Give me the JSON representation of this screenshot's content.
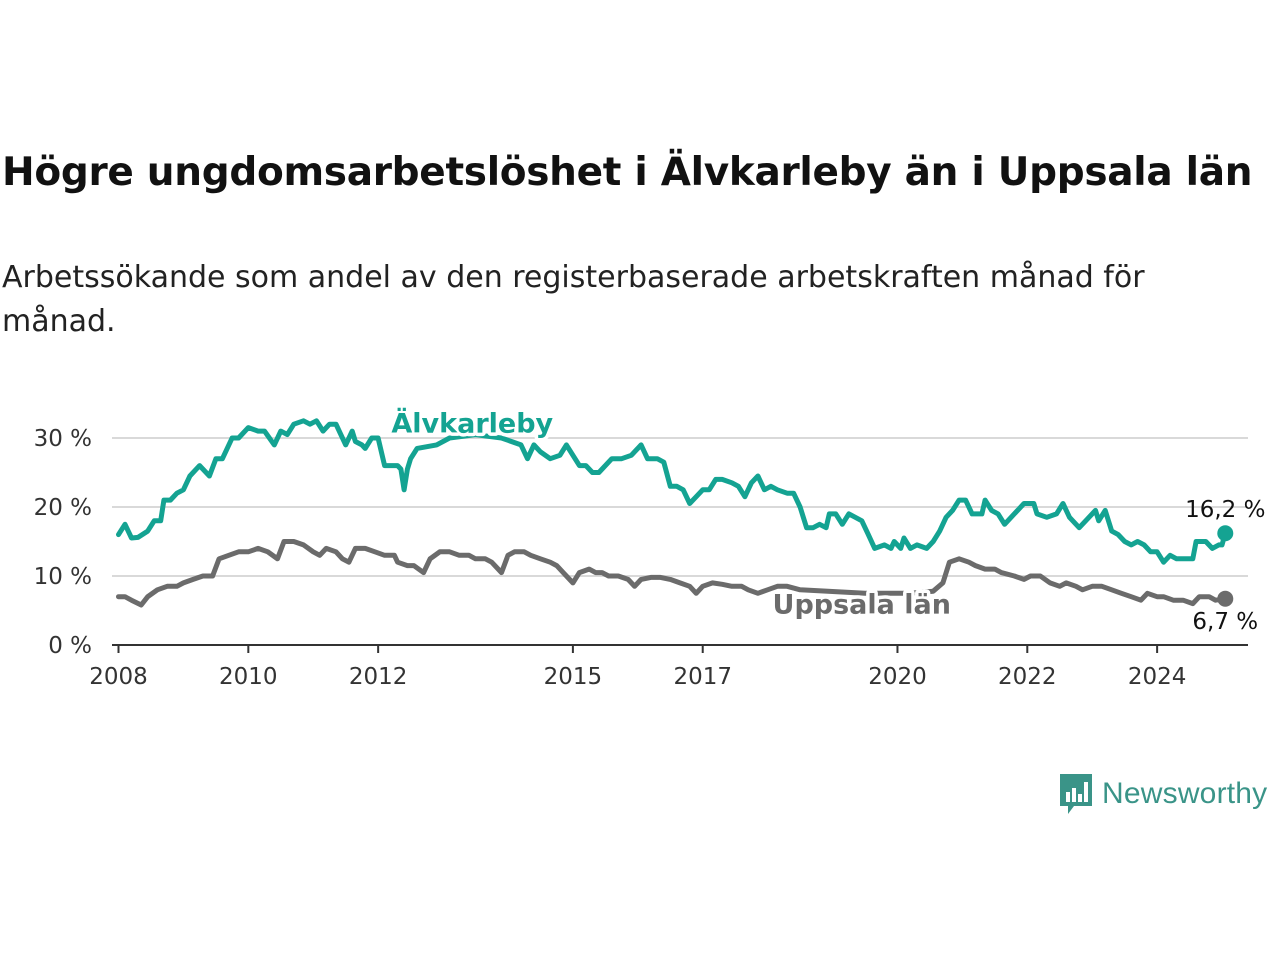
{
  "title": "Högre ungdomsarbetslöshet i Älvkarleby än i Uppsala län",
  "subtitle": "Arbetssökande som andel av den registerbaserade arbetskraften månad för månad.",
  "brand": {
    "name": "Newsworthy",
    "color": "#3a9488",
    "icon": "bar-chart-speech-bubble-icon"
  },
  "chart_data": {
    "type": "line",
    "x_unit": "year",
    "xlim": [
      2007.9,
      2025.4
    ],
    "ylim": [
      0,
      30
    ],
    "y_ticks": [
      0,
      10,
      20,
      30
    ],
    "y_tick_labels": [
      "0 %",
      "10 %",
      "20 %",
      "30 %"
    ],
    "x_ticks": [
      2008,
      2010,
      2012,
      2015,
      2017,
      2020,
      2022,
      2024
    ],
    "x_tick_labels": [
      "2008",
      "2010",
      "2012",
      "2015",
      "2017",
      "2020",
      "2022",
      "2024"
    ],
    "grid": "horizontal",
    "legend": "inline labels",
    "series": [
      {
        "name": "Älvkarleby",
        "color": "#14a392",
        "end_label": "16,2 %",
        "points": [
          [
            2008.0,
            16.0
          ],
          [
            2008.1,
            17.5
          ],
          [
            2008.2,
            15.5
          ],
          [
            2008.3,
            15.6
          ],
          [
            2008.45,
            16.5
          ],
          [
            2008.55,
            18.0
          ],
          [
            2008.65,
            18.0
          ],
          [
            2008.7,
            21.0
          ],
          [
            2008.8,
            21.0
          ],
          [
            2008.9,
            22.0
          ],
          [
            2009.0,
            22.5
          ],
          [
            2009.1,
            24.5
          ],
          [
            2009.25,
            26.0
          ],
          [
            2009.35,
            25.0
          ],
          [
            2009.4,
            24.5
          ],
          [
            2009.5,
            27.0
          ],
          [
            2009.6,
            27.0
          ],
          [
            2009.75,
            30.0
          ],
          [
            2009.85,
            30.0
          ],
          [
            2010.0,
            31.5
          ],
          [
            2010.15,
            31.0
          ],
          [
            2010.25,
            31.0
          ],
          [
            2010.4,
            29.0
          ],
          [
            2010.5,
            31.0
          ],
          [
            2010.6,
            30.5
          ],
          [
            2010.7,
            32.0
          ],
          [
            2010.85,
            32.5
          ],
          [
            2010.95,
            32.0
          ],
          [
            2011.05,
            32.5
          ],
          [
            2011.15,
            31.0
          ],
          [
            2011.25,
            32.0
          ],
          [
            2011.35,
            32.0
          ],
          [
            2011.5,
            29.0
          ],
          [
            2011.6,
            31.0
          ],
          [
            2011.65,
            29.5
          ],
          [
            2011.75,
            29.0
          ],
          [
            2011.8,
            28.5
          ],
          [
            2011.9,
            30.0
          ],
          [
            2012.0,
            30.0
          ],
          [
            2012.1,
            26.0
          ],
          [
            2012.2,
            26.0
          ],
          [
            2012.3,
            26.0
          ],
          [
            2012.35,
            25.5
          ],
          [
            2012.4,
            22.5
          ],
          [
            2012.45,
            25.5
          ],
          [
            2012.5,
            27.0
          ],
          [
            2012.6,
            28.5
          ],
          [
            2012.9,
            29.0
          ],
          [
            2013.1,
            30.0
          ],
          [
            2013.5,
            30.5
          ],
          [
            2013.9,
            30.0
          ],
          [
            2014.2,
            29.0
          ],
          [
            2014.3,
            27.0
          ],
          [
            2014.4,
            29.0
          ],
          [
            2014.5,
            28.0
          ],
          [
            2014.65,
            27.0
          ],
          [
            2014.8,
            27.5
          ],
          [
            2014.9,
            29.0
          ],
          [
            2015.1,
            26.0
          ],
          [
            2015.2,
            26.0
          ],
          [
            2015.3,
            25.0
          ],
          [
            2015.4,
            25.0
          ],
          [
            2015.6,
            27.0
          ],
          [
            2015.75,
            27.0
          ],
          [
            2015.9,
            27.5
          ],
          [
            2016.05,
            29.0
          ],
          [
            2016.15,
            27.0
          ],
          [
            2016.3,
            27.0
          ],
          [
            2016.4,
            26.5
          ],
          [
            2016.5,
            23.0
          ],
          [
            2016.6,
            23.0
          ],
          [
            2016.7,
            22.5
          ],
          [
            2016.8,
            20.5
          ],
          [
            2016.9,
            21.5
          ],
          [
            2017.0,
            22.5
          ],
          [
            2017.1,
            22.5
          ],
          [
            2017.2,
            24.0
          ],
          [
            2017.3,
            24.0
          ],
          [
            2017.45,
            23.5
          ],
          [
            2017.55,
            23.0
          ],
          [
            2017.65,
            21.5
          ],
          [
            2017.75,
            23.5
          ],
          [
            2017.85,
            24.5
          ],
          [
            2017.95,
            22.5
          ],
          [
            2018.05,
            23.0
          ],
          [
            2018.15,
            22.5
          ],
          [
            2018.3,
            22.0
          ],
          [
            2018.4,
            22.0
          ],
          [
            2018.5,
            20.0
          ],
          [
            2018.6,
            17.0
          ],
          [
            2018.7,
            17.0
          ],
          [
            2018.8,
            17.5
          ],
          [
            2018.9,
            17.0
          ],
          [
            2018.95,
            19.0
          ],
          [
            2019.05,
            19.0
          ],
          [
            2019.15,
            17.5
          ],
          [
            2019.25,
            19.0
          ],
          [
            2019.35,
            18.5
          ],
          [
            2019.45,
            18.0
          ],
          [
            2019.55,
            16.0
          ],
          [
            2019.65,
            14.0
          ],
          [
            2019.8,
            14.5
          ],
          [
            2019.9,
            14.0
          ],
          [
            2019.95,
            15.0
          ],
          [
            2020.05,
            14.0
          ],
          [
            2020.1,
            15.5
          ],
          [
            2020.2,
            14.0
          ],
          [
            2020.3,
            14.5
          ],
          [
            2020.45,
            14.0
          ],
          [
            2020.55,
            15.0
          ],
          [
            2020.65,
            16.5
          ],
          [
            2020.75,
            18.5
          ],
          [
            2020.85,
            19.5
          ],
          [
            2020.95,
            21.0
          ],
          [
            2021.05,
            21.0
          ],
          [
            2021.15,
            19.0
          ],
          [
            2021.3,
            19.0
          ],
          [
            2021.35,
            21.0
          ],
          [
            2021.45,
            19.5
          ],
          [
            2021.55,
            19.0
          ],
          [
            2021.65,
            17.5
          ],
          [
            2021.75,
            18.5
          ],
          [
            2021.85,
            19.5
          ],
          [
            2021.95,
            20.5
          ],
          [
            2022.1,
            20.5
          ],
          [
            2022.15,
            19.0
          ],
          [
            2022.3,
            18.5
          ],
          [
            2022.45,
            19.0
          ],
          [
            2022.55,
            20.5
          ],
          [
            2022.65,
            18.5
          ],
          [
            2022.8,
            17.0
          ],
          [
            2022.9,
            18.0
          ],
          [
            2023.05,
            19.5
          ],
          [
            2023.1,
            18.0
          ],
          [
            2023.2,
            19.5
          ],
          [
            2023.3,
            16.5
          ],
          [
            2023.4,
            16.0
          ],
          [
            2023.5,
            15.0
          ],
          [
            2023.6,
            14.5
          ],
          [
            2023.7,
            15.0
          ],
          [
            2023.8,
            14.5
          ],
          [
            2023.9,
            13.5
          ],
          [
            2024.0,
            13.5
          ],
          [
            2024.1,
            12.0
          ],
          [
            2024.2,
            13.0
          ],
          [
            2024.3,
            12.5
          ],
          [
            2024.45,
            12.5
          ],
          [
            2024.55,
            12.5
          ],
          [
            2024.6,
            15.0
          ],
          [
            2024.75,
            15.0
          ],
          [
            2024.85,
            14.0
          ],
          [
            2024.95,
            14.5
          ],
          [
            2025.0,
            14.5
          ],
          [
            2025.05,
            16.2
          ]
        ]
      },
      {
        "name": "Uppsala län",
        "color": "#6b6b6b",
        "end_label": "6,7 %",
        "points": [
          [
            2008.0,
            7.0
          ],
          [
            2008.1,
            7.0
          ],
          [
            2008.2,
            6.5
          ],
          [
            2008.35,
            5.8
          ],
          [
            2008.45,
            7.0
          ],
          [
            2008.6,
            8.0
          ],
          [
            2008.75,
            8.5
          ],
          [
            2008.9,
            8.5
          ],
          [
            2009.0,
            9.0
          ],
          [
            2009.15,
            9.5
          ],
          [
            2009.3,
            10.0
          ],
          [
            2009.45,
            10.0
          ],
          [
            2009.55,
            12.5
          ],
          [
            2009.7,
            13.0
          ],
          [
            2009.85,
            13.5
          ],
          [
            2010.0,
            13.5
          ],
          [
            2010.15,
            14.0
          ],
          [
            2010.3,
            13.5
          ],
          [
            2010.45,
            12.5
          ],
          [
            2010.55,
            15.0
          ],
          [
            2010.7,
            15.0
          ],
          [
            2010.85,
            14.5
          ],
          [
            2011.0,
            13.5
          ],
          [
            2011.1,
            13.0
          ],
          [
            2011.2,
            14.0
          ],
          [
            2011.35,
            13.5
          ],
          [
            2011.45,
            12.5
          ],
          [
            2011.55,
            12.0
          ],
          [
            2011.65,
            14.0
          ],
          [
            2011.8,
            14.0
          ],
          [
            2011.95,
            13.5
          ],
          [
            2012.1,
            13.0
          ],
          [
            2012.25,
            13.0
          ],
          [
            2012.3,
            12.0
          ],
          [
            2012.45,
            11.5
          ],
          [
            2012.55,
            11.5
          ],
          [
            2012.7,
            10.5
          ],
          [
            2012.8,
            12.5
          ],
          [
            2012.95,
            13.5
          ],
          [
            2013.1,
            13.5
          ],
          [
            2013.25,
            13.0
          ],
          [
            2013.4,
            13.0
          ],
          [
            2013.5,
            12.5
          ],
          [
            2013.65,
            12.5
          ],
          [
            2013.75,
            12.0
          ],
          [
            2013.9,
            10.5
          ],
          [
            2014.0,
            13.0
          ],
          [
            2014.1,
            13.5
          ],
          [
            2014.25,
            13.5
          ],
          [
            2014.35,
            13.0
          ],
          [
            2014.5,
            12.5
          ],
          [
            2014.65,
            12.0
          ],
          [
            2014.75,
            11.5
          ],
          [
            2014.85,
            10.5
          ],
          [
            2014.95,
            9.5
          ],
          [
            2015.0,
            9.0
          ],
          [
            2015.1,
            10.5
          ],
          [
            2015.25,
            11.0
          ],
          [
            2015.35,
            10.5
          ],
          [
            2015.45,
            10.5
          ],
          [
            2015.55,
            10.0
          ],
          [
            2015.7,
            10.0
          ],
          [
            2015.85,
            9.5
          ],
          [
            2015.95,
            8.5
          ],
          [
            2016.05,
            9.5
          ],
          [
            2016.2,
            9.8
          ],
          [
            2016.35,
            9.8
          ],
          [
            2016.5,
            9.5
          ],
          [
            2016.65,
            9.0
          ],
          [
            2016.8,
            8.5
          ],
          [
            2016.9,
            7.5
          ],
          [
            2017.0,
            8.5
          ],
          [
            2017.15,
            9.0
          ],
          [
            2017.3,
            8.8
          ],
          [
            2017.45,
            8.5
          ],
          [
            2017.6,
            8.5
          ],
          [
            2017.7,
            8.0
          ],
          [
            2017.85,
            7.5
          ],
          [
            2018.0,
            8.0
          ],
          [
            2018.15,
            8.5
          ],
          [
            2018.3,
            8.5
          ],
          [
            2018.5,
            8.0
          ],
          [
            2019.5,
            7.5
          ],
          [
            2020.2,
            7.5
          ],
          [
            2020.55,
            7.8
          ],
          [
            2020.7,
            9.0
          ],
          [
            2020.8,
            12.0
          ],
          [
            2020.95,
            12.5
          ],
          [
            2021.1,
            12.0
          ],
          [
            2021.2,
            11.5
          ],
          [
            2021.35,
            11.0
          ],
          [
            2021.5,
            11.0
          ],
          [
            2021.6,
            10.5
          ],
          [
            2021.8,
            10.0
          ],
          [
            2021.95,
            9.5
          ],
          [
            2022.05,
            10.0
          ],
          [
            2022.2,
            10.0
          ],
          [
            2022.35,
            9.0
          ],
          [
            2022.5,
            8.5
          ],
          [
            2022.6,
            9.0
          ],
          [
            2022.75,
            8.5
          ],
          [
            2022.85,
            8.0
          ],
          [
            2023.0,
            8.5
          ],
          [
            2023.15,
            8.5
          ],
          [
            2023.3,
            8.0
          ],
          [
            2023.45,
            7.5
          ],
          [
            2023.6,
            7.0
          ],
          [
            2023.75,
            6.5
          ],
          [
            2023.85,
            7.5
          ],
          [
            2024.0,
            7.0
          ],
          [
            2024.1,
            7.0
          ],
          [
            2024.25,
            6.5
          ],
          [
            2024.4,
            6.5
          ],
          [
            2024.55,
            6.0
          ],
          [
            2024.65,
            7.0
          ],
          [
            2024.8,
            7.0
          ],
          [
            2024.9,
            6.5
          ],
          [
            2025.05,
            6.7
          ]
        ]
      }
    ]
  }
}
